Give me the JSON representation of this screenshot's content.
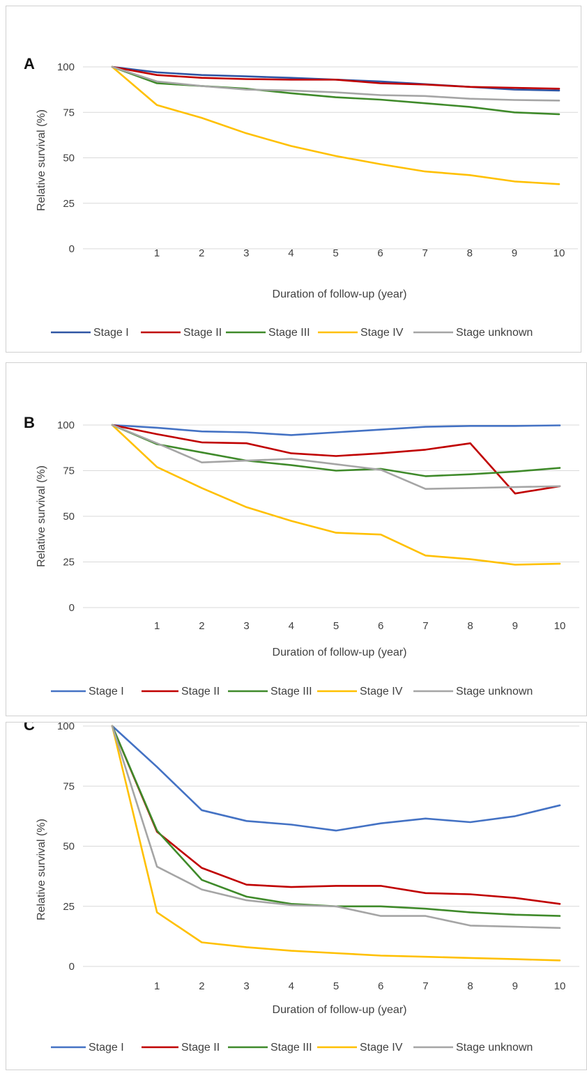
{
  "chart_data": [
    {
      "panel_label": "A",
      "type": "line",
      "xlabel": "Duration of follow-up (year)",
      "ylabel": "Relative survival (%)",
      "x_ticks": [
        "1",
        "2",
        "3",
        "4",
        "5",
        "6",
        "7",
        "8",
        "9",
        "10"
      ],
      "y_ticks": [
        "0",
        "25",
        "50",
        "75",
        "100"
      ],
      "xlim": [
        0,
        10
      ],
      "ylim": [
        0,
        100
      ],
      "grid": "horizontal",
      "legend_position": "bottom",
      "x": [
        0,
        1,
        2,
        3,
        4,
        5,
        6,
        7,
        8,
        9,
        10
      ],
      "series": [
        {
          "name": "Stage I",
          "color": "#2f55a4",
          "values": [
            100,
            97,
            95.5,
            94.8,
            94,
            93,
            92,
            90.5,
            89,
            87.5,
            87
          ]
        },
        {
          "name": "Stage II",
          "color": "#c00000",
          "values": [
            100,
            95.5,
            94,
            93.3,
            93,
            93,
            91,
            90.3,
            89,
            88.5,
            88
          ]
        },
        {
          "name": "Stage III",
          "color": "#3f8a2a",
          "values": [
            100,
            91,
            89.5,
            88,
            85.5,
            83.3,
            82,
            80,
            78,
            75,
            74
          ]
        },
        {
          "name": "Stage IV",
          "color": "#ffc000",
          "values": [
            100,
            79,
            72,
            63.5,
            56.5,
            51,
            46.5,
            42.5,
            40.5,
            37,
            35.5
          ]
        },
        {
          "name": "Stage unknown",
          "color": "#a5a5a5",
          "values": [
            100,
            92,
            89.5,
            87.5,
            87,
            86,
            84.5,
            84,
            82.5,
            81.8,
            81.5
          ]
        }
      ]
    },
    {
      "panel_label": "B",
      "type": "line",
      "xlabel": "Duration of follow-up (year)",
      "ylabel": "Relative survival (%)",
      "x_ticks": [
        "1",
        "2",
        "3",
        "4",
        "5",
        "6",
        "7",
        "8",
        "9",
        "10"
      ],
      "y_ticks": [
        "0",
        "25",
        "50",
        "75",
        "100"
      ],
      "xlim": [
        0,
        10
      ],
      "ylim": [
        0,
        100
      ],
      "grid": "horizontal",
      "legend_position": "bottom",
      "x": [
        0,
        1,
        2,
        3,
        4,
        5,
        6,
        7,
        8,
        9,
        10
      ],
      "series": [
        {
          "name": "Stage I",
          "color": "#4472c4",
          "values": [
            100,
            98.5,
            96.5,
            96,
            94.5,
            96,
            97.5,
            99,
            99.5,
            99.5,
            99.8
          ]
        },
        {
          "name": "Stage II",
          "color": "#c00000",
          "values": [
            100,
            95,
            90.5,
            90,
            84.5,
            83,
            84.5,
            86.5,
            90,
            62.5,
            66.5
          ]
        },
        {
          "name": "Stage III",
          "color": "#3f8a2a",
          "values": [
            100,
            89.5,
            85,
            80.5,
            78,
            75,
            76,
            72,
            73,
            74.5,
            76.5
          ]
        },
        {
          "name": "Stage IV",
          "color": "#ffc000",
          "values": [
            100,
            77,
            65.5,
            55,
            47.5,
            41,
            40,
            28.5,
            26.5,
            23.5,
            24
          ]
        },
        {
          "name": "Stage unknown",
          "color": "#a5a5a5",
          "values": [
            100,
            90,
            79.5,
            80.5,
            81.5,
            78.5,
            75.5,
            65,
            65.5,
            66,
            66.5
          ]
        }
      ]
    },
    {
      "panel_label": "C",
      "type": "line",
      "xlabel": "Duration of follow-up (year)",
      "ylabel": "Relative survival (%)",
      "x_ticks": [
        "1",
        "2",
        "3",
        "4",
        "5",
        "6",
        "7",
        "8",
        "9",
        "10"
      ],
      "y_ticks": [
        "0",
        "25",
        "50",
        "75",
        "100"
      ],
      "xlim": [
        0,
        10
      ],
      "ylim": [
        0,
        100
      ],
      "grid": "horizontal",
      "legend_position": "bottom",
      "x": [
        0,
        1,
        2,
        3,
        4,
        5,
        6,
        7,
        8,
        9,
        10
      ],
      "series": [
        {
          "name": "Stage I",
          "color": "#4472c4",
          "values": [
            100,
            83,
            65,
            60.5,
            59,
            56.5,
            59.5,
            61.5,
            60,
            62.5,
            67
          ]
        },
        {
          "name": "Stage II",
          "color": "#c00000",
          "values": [
            100,
            56,
            41,
            34,
            33,
            33.5,
            33.5,
            30.5,
            30,
            28.5,
            26
          ]
        },
        {
          "name": "Stage III",
          "color": "#3f8a2a",
          "values": [
            100,
            56.5,
            36,
            29,
            26,
            25,
            25,
            24,
            22.5,
            21.5,
            21
          ]
        },
        {
          "name": "Stage IV",
          "color": "#ffc000",
          "values": [
            100,
            22.5,
            10,
            8,
            6.5,
            5.5,
            4.5,
            4,
            3.5,
            3,
            2.5
          ]
        },
        {
          "name": "Stage unknown",
          "color": "#a5a5a5",
          "values": [
            100,
            41.5,
            32,
            27.5,
            25.5,
            25,
            21,
            21,
            17,
            16.5,
            16
          ]
        }
      ]
    }
  ]
}
